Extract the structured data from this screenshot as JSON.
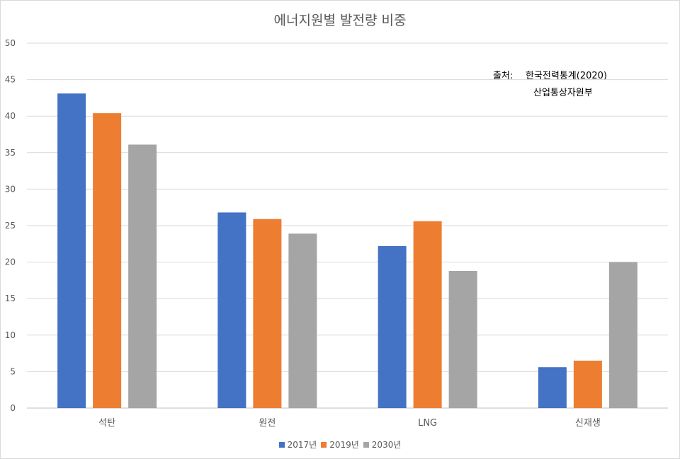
{
  "chart_data": {
    "type": "bar",
    "title": "에너지원별 발전량 비중",
    "categories": [
      "석탄",
      "원전",
      "LNG",
      "신재생"
    ],
    "series": [
      {
        "name": "2017년",
        "color": "#4472c4",
        "values": [
          43.1,
          26.8,
          22.2,
          5.6
        ]
      },
      {
        "name": "2019년",
        "color": "#ed7d31",
        "values": [
          40.4,
          25.9,
          25.6,
          6.5
        ]
      },
      {
        "name": "2030년",
        "color": "#a5a5a5",
        "values": [
          36.1,
          23.9,
          18.8,
          20.0
        ]
      }
    ],
    "ylim": [
      0,
      50
    ],
    "yticks": [
      "0",
      "5",
      "10",
      "15",
      "20",
      "25",
      "30",
      "35",
      "40",
      "45",
      "50"
    ],
    "grid": true,
    "legend_position": "bottom"
  },
  "annotation": {
    "label": "출처:",
    "line1": "한국전력통계(2020)",
    "line2": "산업통상자원부"
  }
}
